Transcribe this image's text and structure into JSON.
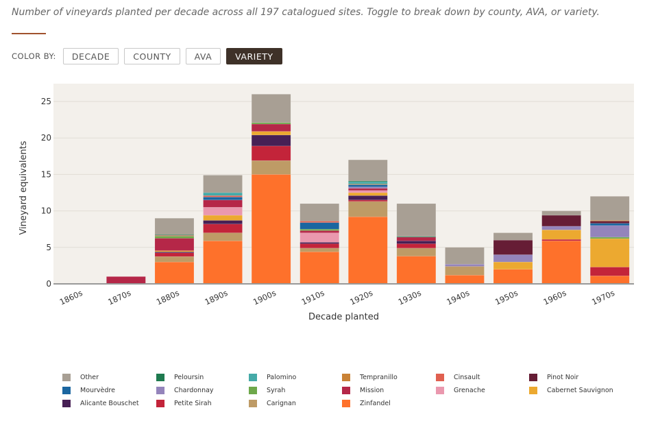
{
  "subtitle": "Number of vineyards planted per decade across all 197 catalogued sites. Toggle to break down by county, AVA, or variety.",
  "color_by": {
    "label": "COLOR BY:",
    "options": [
      "DECADE",
      "COUNTY",
      "AVA",
      "VARIETY"
    ],
    "selected": "VARIETY"
  },
  "chart_data": {
    "type": "bar",
    "stacked": true,
    "xlabel": "Decade planted",
    "ylabel": "Vineyard equivalents",
    "ylim": [
      0,
      27.5
    ],
    "yticks": [
      0,
      5,
      10,
      15,
      20,
      25
    ],
    "grid": true,
    "legend_position": "bottom",
    "categories": [
      "1860s",
      "1870s",
      "1880s",
      "1890s",
      "1900s",
      "1910s",
      "1920s",
      "1930s",
      "1940s",
      "1950s",
      "1960s",
      "1970s"
    ],
    "series": [
      {
        "name": "Zinfandel",
        "color": "#fe712b",
        "values": [
          0,
          0,
          3.0,
          5.9,
          15.0,
          4.4,
          9.2,
          3.8,
          1.2,
          2.0,
          5.9,
          1.1
        ]
      },
      {
        "name": "Carignan",
        "color": "#be9b66",
        "values": [
          0,
          0,
          0.75,
          1.1,
          1.9,
          0.5,
          2.1,
          1.1,
          1.2,
          0,
          0,
          0
        ]
      },
      {
        "name": "Petite Sirah",
        "color": "#c3243a",
        "values": [
          0,
          0,
          0.5,
          1.2,
          2.0,
          0.6,
          0.2,
          0.6,
          0,
          0,
          0.2,
          1.2
        ]
      },
      {
        "name": "Alicante Bouschet",
        "color": "#472055",
        "values": [
          0,
          0,
          0.15,
          0.5,
          1.5,
          0.2,
          0.6,
          0.4,
          0,
          0,
          0,
          0
        ]
      },
      {
        "name": "Cabernet Sauvignon",
        "color": "#eca930",
        "values": [
          0,
          0,
          0.15,
          0.7,
          0.5,
          0,
          0.4,
          0,
          0,
          1.0,
          1.3,
          3.9
        ]
      },
      {
        "name": "Grenache",
        "color": "#ea98ae",
        "values": [
          0,
          0,
          0,
          1.1,
          0,
          1.3,
          0.3,
          0,
          0,
          0,
          0,
          0
        ]
      },
      {
        "name": "Mission",
        "color": "#b52748",
        "values": [
          0,
          1.0,
          1.7,
          1.0,
          1.0,
          0.3,
          0.3,
          0.5,
          0,
          0,
          0,
          0
        ]
      },
      {
        "name": "Syrah",
        "color": "#6ea84a",
        "values": [
          0,
          0,
          0.3,
          0,
          0.2,
          0.2,
          0,
          0,
          0,
          0,
          0,
          0.2
        ]
      },
      {
        "name": "Chardonnay",
        "color": "#9484bb",
        "values": [
          0,
          0,
          0,
          0,
          0,
          0,
          0.2,
          0,
          0.3,
          1.0,
          0.5,
          1.6
        ]
      },
      {
        "name": "Mourvèdre",
        "color": "#1b66a0",
        "values": [
          0,
          0,
          0,
          0.4,
          0,
          0.9,
          0.3,
          0,
          0,
          0,
          0,
          0.3
        ]
      },
      {
        "name": "Pinot Noir",
        "color": "#661d35",
        "values": [
          0,
          0,
          0,
          0,
          0,
          0,
          0,
          0,
          0,
          2.0,
          1.5,
          0.3
        ]
      },
      {
        "name": "Cinsault",
        "color": "#e06050",
        "values": [
          0,
          0,
          0.1,
          0.2,
          0,
          0.2,
          0,
          0,
          0,
          0,
          0,
          0
        ]
      },
      {
        "name": "Tempranillo",
        "color": "#c98236",
        "values": [
          0,
          0,
          0,
          0,
          0,
          0,
          0.1,
          0,
          0,
          0,
          0,
          0.1
        ]
      },
      {
        "name": "Palomino",
        "color": "#45aaa8",
        "values": [
          0,
          0,
          0,
          0.4,
          0,
          0,
          0.3,
          0,
          0,
          0,
          0,
          0
        ]
      },
      {
        "name": "Peloursin",
        "color": "#1e7a4f",
        "values": [
          0,
          0,
          0.1,
          0,
          0,
          0,
          0.1,
          0.1,
          0,
          0,
          0,
          0
        ]
      },
      {
        "name": "Other",
        "color": "#a89f94",
        "values": [
          0,
          0,
          2.25,
          2.4,
          3.9,
          2.4,
          2.9,
          4.5,
          2.3,
          1.0,
          0.6,
          3.3
        ]
      }
    ],
    "legend_order": [
      "Other",
      "Peloursin",
      "Palomino",
      "Tempranillo",
      "Cinsault",
      "Pinot Noir",
      "Mourvèdre",
      "Chardonnay",
      "Syrah",
      "Mission",
      "Grenache",
      "Cabernet Sauvignon",
      "Alicante Bouschet",
      "Petite Sirah",
      "Carignan",
      "Zinfandel"
    ],
    "plot_background": "#f3f0eb"
  }
}
